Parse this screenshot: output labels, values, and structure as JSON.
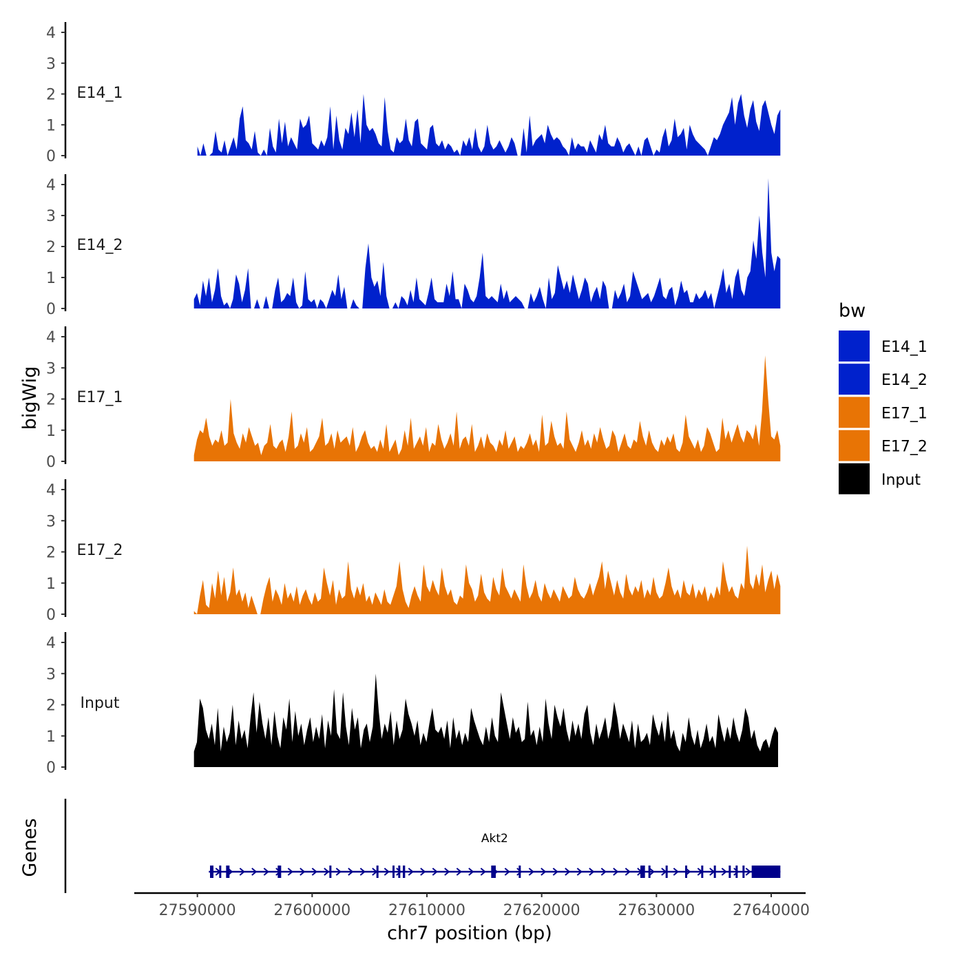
{
  "chart_data": {
    "type": "area",
    "chromosome": "chr7",
    "xlabel": "chr7 position (bp)",
    "ylabel": "bigWig",
    "genes_label": "Genes",
    "xlim": [
      27584500,
      27643000
    ],
    "x_ticks": [
      27590000,
      27600000,
      27610000,
      27620000,
      27630000,
      27640000
    ],
    "x_tick_labels": [
      "27590000",
      "27600000",
      "27610000",
      "27620000",
      "27630000",
      "27640000"
    ],
    "ylim": [
      0,
      4.3
    ],
    "y_ticks": [
      0,
      1,
      2,
      3,
      4
    ],
    "y_tick_labels": [
      "0",
      "1",
      "2",
      "3",
      "4"
    ],
    "legend": {
      "title": "bw",
      "entries": [
        {
          "label": "E14_1",
          "color": "#0021CC"
        },
        {
          "label": "E14_2",
          "color": "#0021CC"
        },
        {
          "label": "E17_1",
          "color": "#E87405"
        },
        {
          "label": "E17_2",
          "color": "#E87405"
        },
        {
          "label": "Input",
          "color": "#000000"
        }
      ]
    },
    "tracks": [
      {
        "name": "E14_1",
        "color": "#0021CC",
        "x_start": 27590000,
        "x_end": 27640800,
        "values": [
          0.3,
          0,
          0.4,
          0,
          0,
          0.1,
          0.8,
          0.2,
          0.1,
          0.5,
          0,
          0.3,
          0.6,
          0.2,
          1.2,
          1.6,
          0.5,
          0.4,
          0.2,
          0.8,
          0.1,
          0,
          0.2,
          0,
          0.9,
          0.3,
          0.1,
          1.2,
          0.4,
          1.1,
          0.3,
          0.6,
          0.4,
          0.2,
          1.2,
          0.9,
          1.0,
          1.3,
          0.4,
          0.3,
          0.2,
          0.5,
          0.3,
          0.6,
          1.6,
          0.2,
          1.3,
          0.5,
          0.2,
          0.9,
          0.7,
          1.4,
          0.6,
          1.5,
          0.4,
          2.0,
          1.0,
          0.8,
          0.9,
          0.7,
          0.4,
          0.3,
          1.9,
          0.8,
          0.2,
          0.1,
          0.6,
          0.4,
          0.5,
          1.2,
          0.5,
          0.3,
          1.1,
          1.2,
          0.4,
          0.3,
          0.2,
          0.9,
          1.0,
          0.4,
          0.3,
          0.5,
          0.2,
          0.4,
          0.3,
          0.1,
          0.2,
          0,
          0.5,
          0.3,
          0.6,
          0.2,
          0.9,
          0.3,
          0.1,
          0.3,
          1.0,
          0.4,
          0.2,
          0.3,
          0.5,
          0.3,
          0.1,
          0.3,
          0.6,
          0.4,
          0,
          0,
          0.9,
          0.1,
          1.3,
          0.3,
          0.5,
          0.6,
          0.7,
          0.4,
          1.0,
          0.7,
          0.5,
          0.6,
          0.5,
          0.3,
          0.2,
          0,
          0.6,
          0.2,
          0.4,
          0.3,
          0.3,
          0.1,
          0.5,
          0.3,
          0.1,
          0.7,
          0.5,
          1.0,
          0.4,
          0.3,
          0.3,
          0.6,
          0.4,
          0.1,
          0.3,
          0.4,
          0.2,
          0,
          0.3,
          0,
          0.5,
          0.6,
          0.3,
          0,
          0.2,
          0.1,
          0.6,
          0.9,
          0.3,
          0.5,
          1.2,
          0.6,
          0.7,
          0.9,
          0.2,
          1.0,
          0.7,
          0.5,
          0.4,
          0.3,
          0.2,
          0,
          0.3,
          0.6,
          0.5,
          0.7,
          1.0,
          1.2,
          1.4,
          1.9,
          1.0,
          1.7,
          2.0,
          1.3,
          0.9,
          1.5,
          1.8,
          1.1,
          0.8,
          1.6,
          1.8,
          1.4,
          1.0,
          0.7,
          1.3,
          1.5
        ]
      },
      {
        "name": "E14_2",
        "color": "#0021CC",
        "x_start": 27589700,
        "x_end": 27640800,
        "values": [
          0.3,
          0.5,
          0.1,
          0.9,
          0.4,
          1.0,
          0.2,
          0.6,
          1.3,
          0.4,
          0.1,
          0.2,
          0,
          0.3,
          1.1,
          0.8,
          0.2,
          0.6,
          1.3,
          0,
          0,
          0.3,
          0,
          0,
          0.4,
          0,
          0,
          0.6,
          1.0,
          0.2,
          0.3,
          0.5,
          0.4,
          1.0,
          0.2,
          0,
          0.1,
          1.2,
          0.3,
          0.2,
          0.3,
          0,
          0.3,
          0.2,
          0,
          0.3,
          0.6,
          0.4,
          1.1,
          0.3,
          0.7,
          0,
          0,
          0.3,
          0.1,
          0,
          0,
          1.3,
          2.1,
          1.0,
          0.7,
          0.9,
          0.4,
          1.5,
          0.4,
          0,
          0,
          0.2,
          0,
          0.4,
          0.3,
          0.1,
          0.6,
          0.2,
          1.0,
          0.3,
          0.2,
          0.1,
          0.5,
          1.0,
          0.3,
          0.2,
          0.2,
          0.2,
          0.8,
          0.4,
          1.2,
          0.3,
          0.3,
          0,
          0.8,
          0.6,
          0.3,
          0.2,
          0.4,
          1.0,
          1.8,
          0.4,
          0.3,
          0.4,
          0.3,
          0.2,
          0.8,
          0.3,
          0.6,
          0.2,
          0.3,
          0.4,
          0.3,
          0.2,
          0,
          0,
          0.5,
          0.2,
          0.4,
          0.7,
          0.3,
          0,
          1.0,
          0.3,
          0.5,
          1.4,
          1.0,
          0.6,
          0.9,
          0.5,
          1.1,
          0.7,
          0.3,
          0.6,
          1.0,
          0.8,
          0.2,
          0.5,
          0.7,
          0.3,
          0.9,
          0.7,
          0,
          0,
          0.6,
          0.3,
          0.5,
          0.8,
          0.2,
          0.4,
          1.2,
          0.9,
          0.6,
          0.3,
          0.4,
          0.5,
          0.2,
          0.4,
          0.7,
          1.0,
          0.4,
          0.3,
          0.6,
          0.7,
          0.1,
          0.4,
          0.9,
          0.5,
          0.6,
          0.2,
          0.2,
          0.5,
          0.3,
          0.4,
          0.6,
          0.3,
          0.5,
          0,
          0.4,
          0.8,
          1.3,
          0.5,
          0.8,
          0.3,
          1.0,
          1.3,
          0.6,
          0.4,
          1.0,
          1.2,
          2.2,
          1.6,
          3.0,
          1.8,
          1.0,
          4.2,
          1.8,
          1.2,
          1.7,
          1.6
        ]
      },
      {
        "name": "E17_1",
        "color": "#E87405",
        "x_start": 27589700,
        "x_end": 27640800,
        "values": [
          0.2,
          0.7,
          1.0,
          0.9,
          1.4,
          0.8,
          0.5,
          0.7,
          0.6,
          1.0,
          0.5,
          0.6,
          2.0,
          0.9,
          0.6,
          0.4,
          0.9,
          0.6,
          1.1,
          0.8,
          0.5,
          0.6,
          0.2,
          0.5,
          0.6,
          1.2,
          0.5,
          0.4,
          0.6,
          0.7,
          0.3,
          0.8,
          1.6,
          0.4,
          0.5,
          0.9,
          0.6,
          1.1,
          0.3,
          0.4,
          0.6,
          0.8,
          1.4,
          0.5,
          0.6,
          0.9,
          0.4,
          1.0,
          0.6,
          0.7,
          0.8,
          0.5,
          1.1,
          0.3,
          0.5,
          0.8,
          1.0,
          0.6,
          0.4,
          0.5,
          0.3,
          0.7,
          0.4,
          1.2,
          0.3,
          0.5,
          0.7,
          0.2,
          0.4,
          1.0,
          0.5,
          1.4,
          0.4,
          0.6,
          0.8,
          0.5,
          1.1,
          0.3,
          0.6,
          0.5,
          1.2,
          0.7,
          0.4,
          0.6,
          0.9,
          0.5,
          1.6,
          0.4,
          0.7,
          0.8,
          0.5,
          1.2,
          0.3,
          0.5,
          0.8,
          0.4,
          0.9,
          0.6,
          0.5,
          0.3,
          0.7,
          0.5,
          1.0,
          0.4,
          0.6,
          0.8,
          0.3,
          0.5,
          0.4,
          0.6,
          0.9,
          0.5,
          0.7,
          0.3,
          1.5,
          0.5,
          0.6,
          1.3,
          0.8,
          0.5,
          0.6,
          0.4,
          1.6,
          0.7,
          0.5,
          0.3,
          0.6,
          1.0,
          0.5,
          0.7,
          0.4,
          0.9,
          0.6,
          1.1,
          0.7,
          0.4,
          0.5,
          1.0,
          0.8,
          0.3,
          0.6,
          0.9,
          0.5,
          0.4,
          0.7,
          0.6,
          1.3,
          0.8,
          0.5,
          1.0,
          0.6,
          0.4,
          0.3,
          0.7,
          0.5,
          0.8,
          0.6,
          0.9,
          0.4,
          0.3,
          0.6,
          1.5,
          0.8,
          0.6,
          0.4,
          0.7,
          0.3,
          0.5,
          1.1,
          0.9,
          0.6,
          0.3,
          0.4,
          1.4,
          0.7,
          1.0,
          0.6,
          0.9,
          1.2,
          0.8,
          0.6,
          1.0,
          0.9,
          0.7,
          1.2,
          0.5,
          1.6,
          3.4,
          2.0,
          0.8,
          0.7,
          1.0,
          0.5
        ]
      },
      {
        "name": "E17_2",
        "color": "#E87405",
        "x_start": 27589700,
        "x_end": 27640800,
        "values": [
          0.1,
          0,
          0.6,
          1.1,
          0.3,
          0.2,
          1.0,
          0.5,
          1.4,
          0.6,
          1.2,
          0.4,
          0.7,
          1.5,
          0.6,
          0.8,
          0.4,
          0.7,
          0.2,
          0.6,
          0.3,
          0,
          0,
          0.5,
          0.9,
          1.2,
          0.4,
          0.8,
          0.6,
          0.3,
          1.0,
          0.5,
          0.7,
          0.4,
          0.9,
          0.3,
          0.6,
          0.8,
          0.5,
          0.3,
          0.7,
          0.4,
          0.5,
          1.5,
          1.0,
          0.6,
          1.1,
          0.3,
          0.8,
          0.5,
          0.6,
          1.7,
          0.8,
          0.5,
          0.9,
          0.6,
          1.0,
          0.4,
          0.6,
          0.3,
          0.7,
          0.5,
          0.3,
          0.8,
          0.4,
          0.3,
          0.6,
          0.9,
          1.7,
          0.8,
          0.4,
          0.2,
          0.6,
          0.9,
          0.6,
          0.4,
          1.6,
          0.9,
          0.7,
          1.1,
          0.8,
          0.6,
          1.5,
          0.9,
          0.6,
          0.8,
          0.4,
          0.3,
          0.6,
          0.5,
          1.6,
          1.0,
          0.8,
          0.4,
          0.6,
          1.3,
          0.7,
          0.5,
          0.4,
          1.2,
          0.8,
          0.6,
          1.5,
          0.9,
          0.7,
          0.5,
          0.8,
          0.6,
          0.4,
          1.6,
          0.9,
          0.5,
          0.7,
          1.1,
          0.6,
          0.4,
          1.0,
          0.7,
          0.5,
          0.8,
          0.6,
          0.4,
          0.9,
          0.7,
          0.5,
          0.6,
          1.2,
          0.8,
          0.6,
          0.5,
          0.7,
          1.0,
          0.6,
          0.9,
          1.2,
          1.7,
          0.8,
          1.4,
          1.0,
          0.6,
          1.1,
          0.7,
          0.5,
          1.3,
          0.8,
          0.6,
          0.9,
          0.7,
          1.1,
          0.5,
          0.8,
          0.6,
          1.2,
          0.7,
          0.5,
          0.6,
          1.0,
          1.5,
          0.9,
          0.6,
          0.8,
          0.5,
          1.1,
          0.7,
          0.6,
          1.0,
          0.5,
          0.8,
          0.6,
          0.9,
          0.4,
          0.7,
          0.5,
          0.9,
          0.6,
          1.7,
          1.1,
          0.7,
          0.9,
          0.6,
          0.5,
          1.0,
          0.8,
          2.2,
          1.0,
          0.8,
          1.3,
          0.9,
          1.6,
          0.7,
          1.1,
          1.4,
          0.8,
          1.3,
          0.9
        ]
      },
      {
        "name": "Input",
        "color": "#000000",
        "x_start": 27589700,
        "x_end": 27640600,
        "values": [
          0.5,
          0.8,
          2.2,
          1.9,
          1.2,
          0.9,
          1.4,
          0.7,
          1.9,
          0.5,
          1.3,
          0.8,
          1.1,
          2.0,
          0.7,
          1.5,
          0.9,
          1.2,
          0.6,
          1.6,
          2.4,
          1.1,
          2.1,
          1.4,
          0.9,
          1.6,
          0.7,
          1.8,
          1.0,
          0.6,
          1.6,
          1.2,
          2.2,
          0.8,
          1.8,
          1.0,
          1.4,
          0.7,
          1.2,
          1.6,
          0.8,
          1.3,
          0.9,
          1.7,
          0.6,
          1.5,
          1.0,
          2.5,
          1.1,
          0.9,
          2.4,
          1.3,
          0.7,
          1.9,
          1.2,
          1.6,
          0.6,
          1.2,
          1.4,
          0.8,
          1.3,
          3.0,
          1.8,
          0.9,
          1.4,
          1.1,
          1.8,
          0.7,
          1.5,
          0.9,
          1.2,
          2.2,
          1.7,
          1.4,
          1.0,
          1.5,
          0.7,
          1.1,
          0.8,
          1.4,
          1.9,
          1.2,
          1.1,
          1.3,
          0.9,
          1.5,
          0.6,
          1.6,
          0.9,
          1.2,
          0.7,
          1.1,
          0.8,
          1.9,
          1.5,
          1.2,
          0.9,
          0.7,
          1.3,
          0.8,
          1.6,
          1.0,
          0.8,
          2.4,
          1.9,
          1.4,
          0.9,
          1.6,
          1.1,
          1.3,
          0.8,
          0.9,
          2.1,
          1.0,
          1.2,
          0.7,
          1.3,
          0.8,
          2.2,
          1.4,
          0.9,
          2.0,
          1.6,
          1.3,
          1.9,
          1.2,
          0.8,
          1.5,
          1.0,
          1.4,
          0.9,
          1.7,
          2.0,
          1.1,
          0.7,
          1.4,
          0.9,
          1.2,
          1.6,
          0.9,
          1.3,
          2.1,
          1.6,
          0.9,
          1.4,
          1.1,
          0.8,
          1.5,
          0.6,
          1.4,
          0.8,
          0.9,
          1.1,
          0.7,
          1.7,
          1.3,
          1.0,
          1.5,
          0.8,
          1.8,
          0.9,
          1.2,
          0.7,
          0.5,
          1.1,
          0.8,
          1.6,
          1.0,
          0.7,
          1.2,
          0.6,
          0.9,
          1.4,
          0.8,
          1.0,
          0.6,
          1.7,
          1.2,
          0.8,
          1.3,
          0.9,
          1.6,
          1.1,
          0.8,
          1.2,
          1.9,
          1.6,
          0.9,
          1.2,
          0.7,
          0.5,
          0.8,
          0.9,
          0.6,
          1.0,
          1.3,
          1.1
        ]
      }
    ],
    "genes": [
      {
        "name": "Akt2",
        "strand": "+",
        "start": 27591000,
        "end": 27640800,
        "exons": [
          [
            27591100,
            27591400
          ],
          [
            27591900,
            27592000
          ],
          [
            27592500,
            27592800
          ],
          [
            27597000,
            27597300
          ],
          [
            27601500,
            27601600
          ],
          [
            27605600,
            27605700
          ],
          [
            27607000,
            27607100
          ],
          [
            27607500,
            27607600
          ],
          [
            27607900,
            27608100
          ],
          [
            27615600,
            27616000
          ],
          [
            27618000,
            27618100
          ],
          [
            27628600,
            27629000
          ],
          [
            27629300,
            27629400
          ],
          [
            27630800,
            27630900
          ],
          [
            27632500,
            27632600
          ],
          [
            27633900,
            27634000
          ],
          [
            27635000,
            27635100
          ],
          [
            27636300,
            27636400
          ],
          [
            27636900,
            27637000
          ],
          [
            27637500,
            27637600
          ],
          [
            27638300,
            27640800
          ]
        ]
      }
    ]
  }
}
